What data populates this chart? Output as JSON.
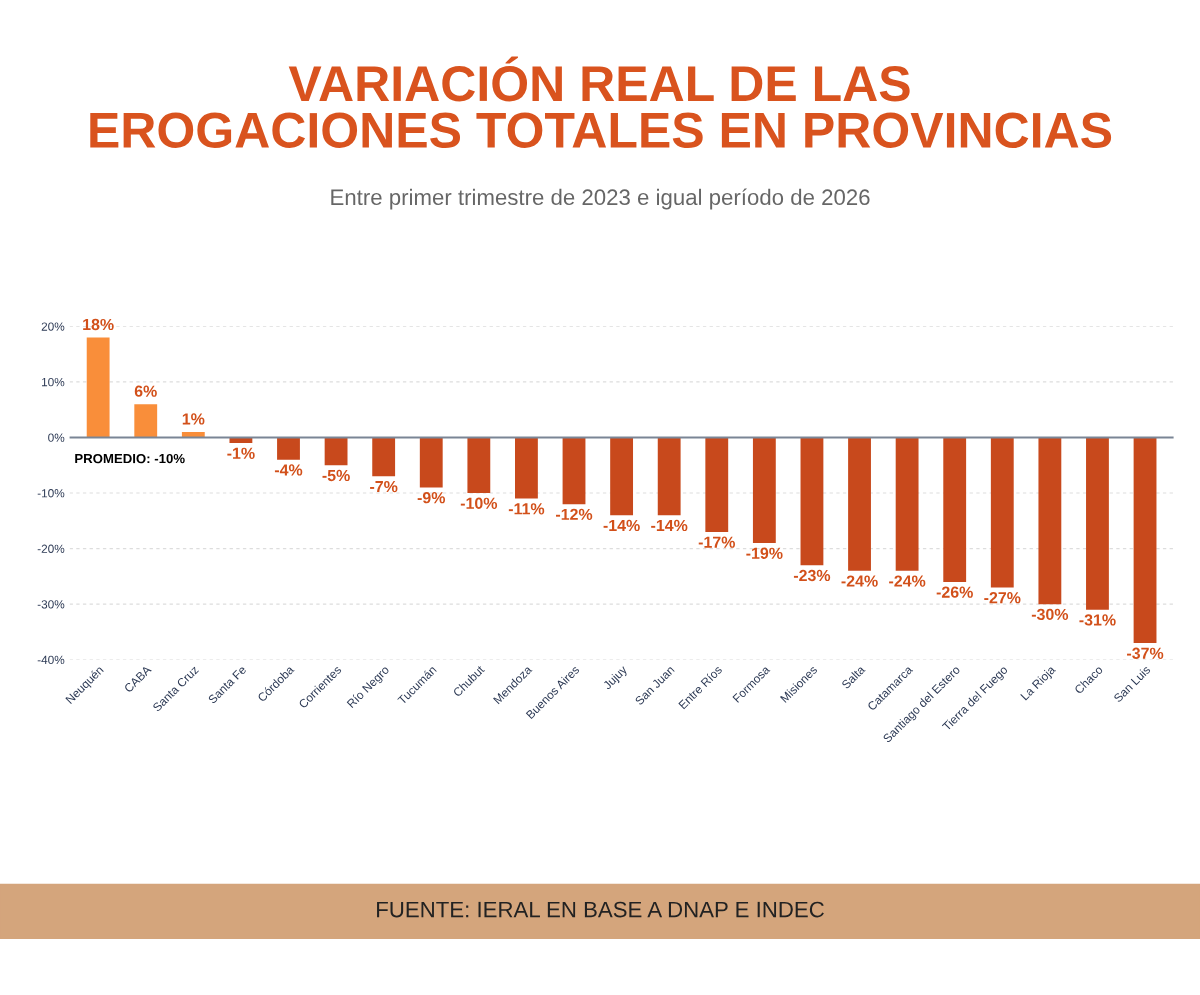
{
  "chart_data": {
    "type": "bar",
    "title": "VARIACIÓN REAL DE LAS\nEROGACIONES TOTALES EN PROVINCIAS",
    "subtitle": "Entre primer trimestre de 2023 e igual período de 2026",
    "categories": [
      "Neuquén",
      "CABA",
      "Santa Cruz",
      "Santa Fe",
      "Córdoba",
      "Corrientes",
      "Río Negro",
      "Tucumán",
      "Chubut",
      "Mendoza",
      "Buenos Aires",
      "Jujuy",
      "San Juan",
      "Entre Ríos",
      "Formosa",
      "Misiones",
      "Salta",
      "Catamarca",
      "Santiago del Estero",
      "Tierra del Fuego",
      "La Rioja",
      "Chaco",
      "San Luis"
    ],
    "values": [
      18,
      6,
      1,
      -1,
      -4,
      -5,
      -7,
      -9,
      -10,
      -11,
      -12,
      -14,
      -14,
      -17,
      -19,
      -23,
      -24,
      -24,
      -26,
      -27,
      -30,
      -31,
      -37
    ],
    "value_labels": [
      "18%",
      "6%",
      "1%",
      "-1%",
      "-4%",
      "-5%",
      "-7%",
      "-9%",
      "-10%",
      "-11%",
      "-12%",
      "-14%",
      "-14%",
      "-17%",
      "-19%",
      "-23%",
      "-24%",
      "-24%",
      "-26%",
      "-27%",
      "-30%",
      "-31%",
      "-37%"
    ],
    "colors": [
      "#f98e3a",
      "#f98e3a",
      "#f98e3a",
      "#c8491c",
      "#c8491c",
      "#c8491c",
      "#c8491c",
      "#c8491c",
      "#c8491c",
      "#c8491c",
      "#c8491c",
      "#c8491c",
      "#c8491c",
      "#c8491c",
      "#c8491c",
      "#c8491c",
      "#c8491c",
      "#c8491c",
      "#c8491c",
      "#c8491c",
      "#c8491c",
      "#c8491c",
      "#c8491c"
    ],
    "ylim": [
      -40,
      20
    ],
    "yticks": [
      {
        "value": -40,
        "label": "-40%"
      },
      {
        "value": -30,
        "label": "-30%"
      },
      {
        "value": -20,
        "label": "-20%"
      },
      {
        "value": -10,
        "label": "-10%"
      },
      {
        "value": 0,
        "label": "0%"
      },
      {
        "value": 10,
        "label": "10%"
      },
      {
        "value": 20,
        "label": "20%"
      }
    ],
    "grid": "y",
    "legend": false,
    "annotations": [
      "PROMEDIO: -10%",
      "FUENTE: IERAL EN BASE A DNAP E INDEC"
    ]
  }
}
